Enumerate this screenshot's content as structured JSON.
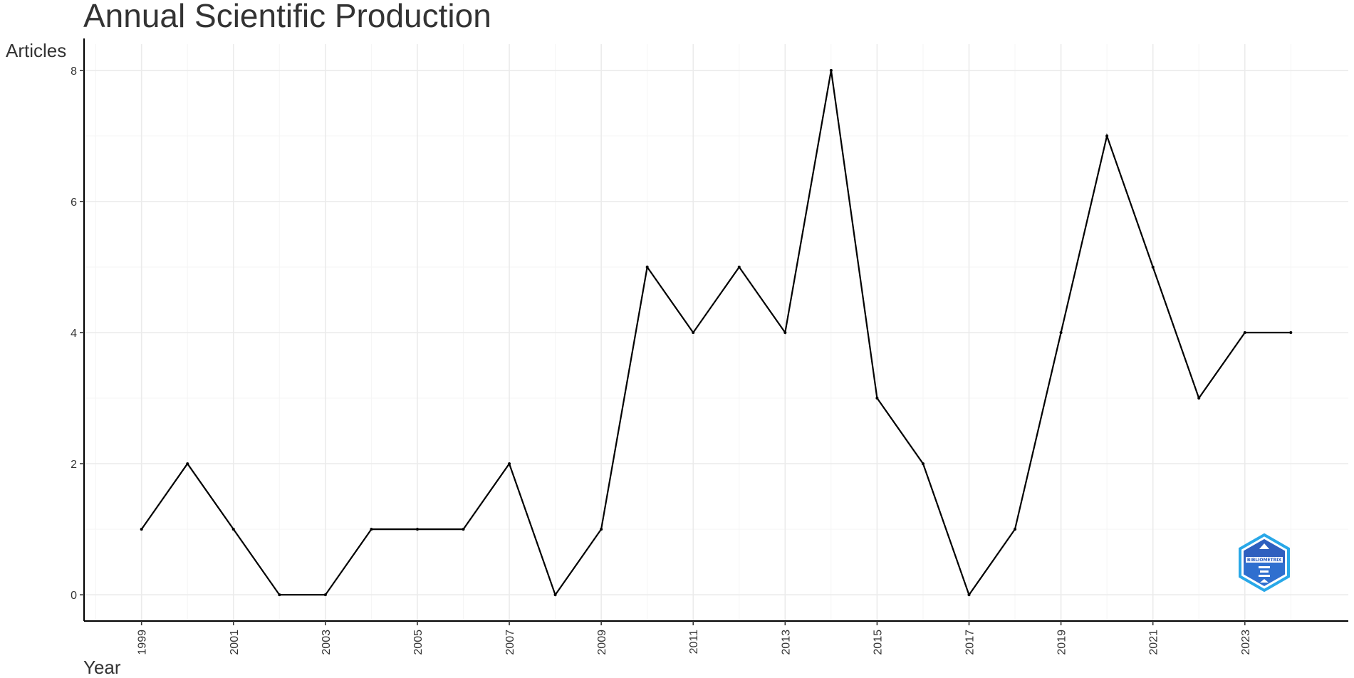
{
  "chart_data": {
    "type": "line",
    "title": "Annual Scientific Production",
    "xlabel": "Year",
    "ylabel": "Articles",
    "x": [
      1999,
      2000,
      2001,
      2002,
      2003,
      2004,
      2005,
      2006,
      2007,
      2008,
      2009,
      2010,
      2011,
      2012,
      2013,
      2014,
      2015,
      2016,
      2017,
      2018,
      2019,
      2020,
      2021,
      2022,
      2023,
      2024
    ],
    "values": [
      1,
      2,
      1,
      0,
      0,
      1,
      1,
      1,
      2,
      0,
      1,
      5,
      4,
      5,
      4,
      8,
      3,
      2,
      0,
      1,
      4,
      7,
      5,
      3,
      4,
      4
    ],
    "x_ticks": [
      "1999",
      "2001",
      "2003",
      "2005",
      "2007",
      "2009",
      "2011",
      "2013",
      "2015",
      "2017",
      "2019",
      "2021",
      "2023"
    ],
    "y_ticks": [
      "0",
      "2",
      "4",
      "6",
      "8"
    ],
    "xlim": [
      1997.75,
      2025.25
    ],
    "ylim": [
      -0.4,
      8.4
    ],
    "grid": true,
    "line_color": "#000000"
  },
  "watermark": {
    "icon": "bibliometrix-logo-icon",
    "text": "BIBLIOMETRIX",
    "colors": [
      "#2f5fbf",
      "#29a8e8"
    ]
  }
}
